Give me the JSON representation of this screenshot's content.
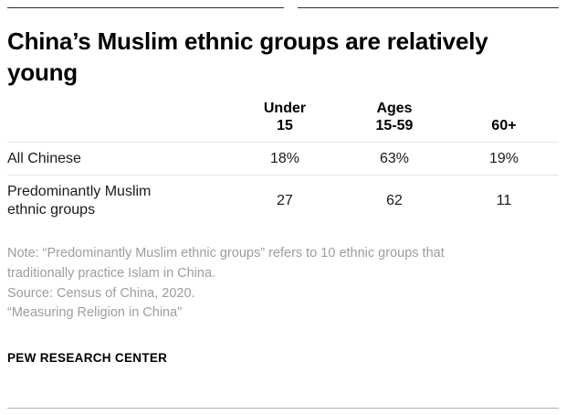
{
  "chart_data": {
    "type": "table",
    "title": "China’s Muslim ethnic groups are relatively young",
    "columns": [
      "Under 15",
      "Ages 15-59",
      "60+"
    ],
    "rows": [
      {
        "label": "All Chinese",
        "values": [
          "18%",
          "63%",
          "19%"
        ]
      },
      {
        "label": "Predominantly Muslim ethnic groups",
        "values": [
          "27",
          "62",
          "11"
        ]
      }
    ]
  },
  "notes": {
    "note": "Note: “Predominantly Muslim ethnic groups” refers to 10 ethnic groups that traditionally practice Islam in China.",
    "source": "Source: Census of China, 2020.",
    "report": "“Measuring Religion in China\""
  },
  "footer": {
    "brand": "PEW RESEARCH CENTER"
  }
}
